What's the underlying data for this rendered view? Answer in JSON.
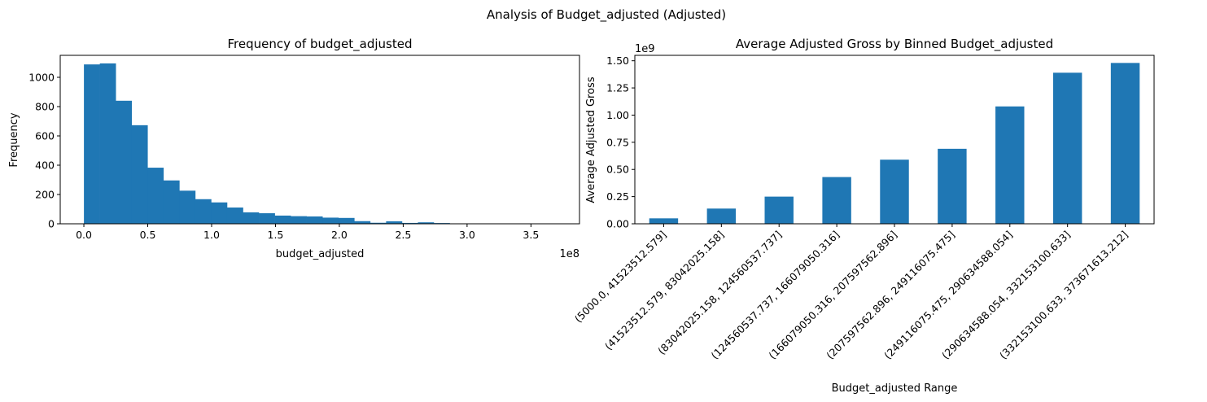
{
  "suptitle": "Analysis of Budget_adjusted (Adjusted)",
  "chart_data": [
    {
      "type": "bar",
      "subtype": "histogram",
      "title": "Frequency of budget_adjusted",
      "xlabel": "budget_adjusted",
      "ylabel": "Frequency",
      "x_offset_label": "1e8",
      "xlim": [
        -0.185,
        3.88
      ],
      "ylim": [
        0,
        1150
      ],
      "xticks": [
        0.0,
        0.5,
        1.0,
        1.5,
        2.0,
        2.5,
        3.0,
        3.5
      ],
      "xtick_labels": [
        "0.0",
        "0.5",
        "1.0",
        "1.5",
        "2.0",
        "2.5",
        "3.0",
        "3.5"
      ],
      "yticks": [
        0,
        200,
        400,
        600,
        800,
        1000
      ],
      "ytick_labels": [
        "0",
        "200",
        "400",
        "600",
        "800",
        "1000"
      ],
      "bin_start": 0.0005,
      "bin_width": 0.1245,
      "values": [
        1088,
        1095,
        840,
        673,
        383,
        296,
        226,
        168,
        146,
        111,
        78,
        72,
        56,
        52,
        50,
        42,
        40,
        18,
        7,
        17,
        6,
        10,
        5,
        2,
        1,
        1,
        1,
        0,
        1,
        1
      ],
      "color": "#1f77b4",
      "grid": false
    },
    {
      "type": "bar",
      "title": "Average Adjusted Gross by Binned Budget_adjusted",
      "xlabel": "Budget_adjusted Range",
      "ylabel": "Average Adjusted Gross",
      "y_offset_label": "1e9",
      "ylim": [
        0,
        1.55
      ],
      "yticks": [
        0.0,
        0.25,
        0.5,
        0.75,
        1.0,
        1.25,
        1.5
      ],
      "ytick_labels": [
        "0.00",
        "0.25",
        "0.50",
        "0.75",
        "1.00",
        "1.25",
        "1.50"
      ],
      "categories": [
        "(5000.0, 41523512.579]",
        "(41523512.579, 83042025.158]",
        "(83042025.158, 124560537.737]",
        "(124560537.737, 166079050.316]",
        "(166079050.316, 207597562.896]",
        "(207597562.896, 249116075.475]",
        "(249116075.475, 290634588.054]",
        "(290634588.054, 332153100.633]",
        "(332153100.633, 373671613.212]"
      ],
      "values": [
        0.05,
        0.14,
        0.25,
        0.43,
        0.59,
        0.69,
        1.08,
        1.39,
        1.48
      ],
      "color": "#1f77b4",
      "grid": false
    }
  ]
}
